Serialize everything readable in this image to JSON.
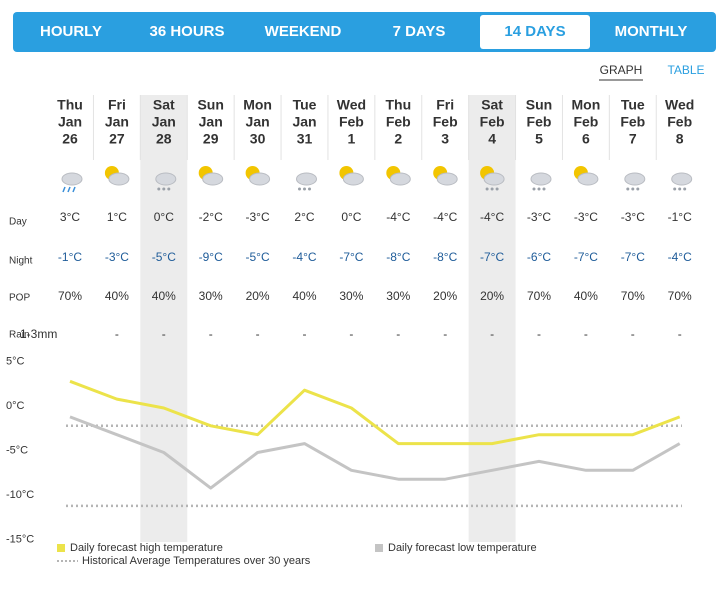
{
  "tabs": [
    {
      "label": "HOURLY",
      "active": false
    },
    {
      "label": "36 HOURS",
      "active": false
    },
    {
      "label": "WEEKEND",
      "active": false
    },
    {
      "label": "7 DAYS",
      "active": false
    },
    {
      "label": "14 DAYS",
      "active": true
    },
    {
      "label": "MONTHLY",
      "active": false
    }
  ],
  "view_links": [
    {
      "label": "GRAPH",
      "active": true
    },
    {
      "label": "TABLE",
      "active": false
    }
  ],
  "forecast": {
    "row_labels": {
      "day": "Day",
      "night": "Night",
      "pop": "POP",
      "rain": "Rain"
    },
    "days": [
      {
        "weekday": "Thu",
        "month": "Jan",
        "date": "26",
        "day": "3°C",
        "night": "-1°C",
        "pop": "70%",
        "rain": "1-3mm",
        "shaded": false
      },
      {
        "weekday": "Fri",
        "month": "Jan",
        "date": "27",
        "day": "1°C",
        "night": "-3°C",
        "pop": "40%",
        "rain": "-",
        "shaded": false
      },
      {
        "weekday": "Sat",
        "month": "Jan",
        "date": "28",
        "day": "0°C",
        "night": "-5°C",
        "pop": "40%",
        "rain": "-",
        "shaded": true
      },
      {
        "weekday": "Sun",
        "month": "Jan",
        "date": "29",
        "day": "-2°C",
        "night": "-9°C",
        "pop": "30%",
        "rain": "-",
        "shaded": false
      },
      {
        "weekday": "Mon",
        "month": "Jan",
        "date": "30",
        "day": "-3°C",
        "night": "-5°C",
        "pop": "20%",
        "rain": "-",
        "shaded": false
      },
      {
        "weekday": "Tue",
        "month": "Jan",
        "date": "31",
        "day": "2°C",
        "night": "-4°C",
        "pop": "40%",
        "rain": "-",
        "shaded": false
      },
      {
        "weekday": "Wed",
        "month": "Feb",
        "date": "1",
        "day": "0°C",
        "night": "-7°C",
        "pop": "30%",
        "rain": "-",
        "shaded": false
      },
      {
        "weekday": "Thu",
        "month": "Feb",
        "date": "2",
        "day": "-4°C",
        "night": "-8°C",
        "pop": "30%",
        "rain": "-",
        "shaded": false
      },
      {
        "weekday": "Fri",
        "month": "Feb",
        "date": "3",
        "day": "-4°C",
        "night": "-8°C",
        "pop": "20%",
        "rain": "-",
        "shaded": false
      },
      {
        "weekday": "Sat",
        "month": "Feb",
        "date": "4",
        "day": "-4°C",
        "night": "-7°C",
        "pop": "20%",
        "rain": "-",
        "shaded": true
      },
      {
        "weekday": "Sun",
        "month": "Feb",
        "date": "5",
        "day": "-3°C",
        "night": "-6°C",
        "pop": "70%",
        "rain": "-",
        "shaded": false
      },
      {
        "weekday": "Mon",
        "month": "Feb",
        "date": "6",
        "day": "-3°C",
        "night": "-7°C",
        "pop": "40%",
        "rain": "-",
        "shaded": false
      },
      {
        "weekday": "Tue",
        "month": "Feb",
        "date": "7",
        "day": "-3°C",
        "night": "-7°C",
        "pop": "70%",
        "rain": "-",
        "shaded": false
      },
      {
        "weekday": "Wed",
        "month": "Feb",
        "date": "8",
        "day": "-1°C",
        "night": "-4°C",
        "pop": "70%",
        "rain": "-",
        "shaded": false
      }
    ]
  },
  "chart_data": {
    "type": "line",
    "ylim": [
      -15,
      5
    ],
    "yticks": [
      {
        "value": 5,
        "label": "5°C"
      },
      {
        "value": 0,
        "label": "0°C"
      },
      {
        "value": -5,
        "label": "-5°C"
      },
      {
        "value": -10,
        "label": "-10°C"
      },
      {
        "value": -15,
        "label": "-15°C"
      }
    ],
    "series": [
      {
        "name": "Daily forecast high temperature",
        "color": "#ece34a",
        "values": [
          3,
          1,
          0,
          -2,
          -3,
          2,
          0,
          -4,
          -4,
          -4,
          -3,
          -3,
          -3,
          -1
        ]
      },
      {
        "name": "Daily forecast low temperature",
        "color": "#c4c4c4",
        "values": [
          -1,
          -3,
          -5,
          -9,
          -5,
          -4,
          -7,
          -8,
          -8,
          -7,
          -6,
          -7,
          -7,
          -4
        ]
      }
    ],
    "reference": {
      "name": "Historical Average Temperatures over 30 years",
      "color": "#b5b5b5",
      "values": [
        -2,
        -11
      ]
    }
  }
}
